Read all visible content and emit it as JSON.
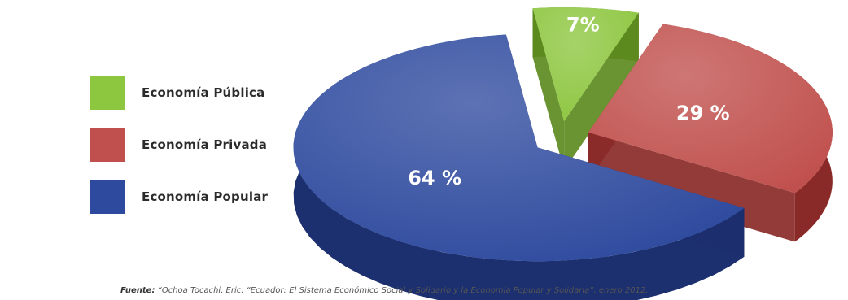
{
  "chart_data": {
    "type": "pie",
    "title": "",
    "slices": [
      {
        "label": "Economía Pública",
        "value": 7,
        "value_label": "7%",
        "color": "#8dc63f",
        "side_color": "#5d8a1f"
      },
      {
        "label": "Economía Privada",
        "value": 29,
        "value_label": "29 %",
        "color": "#c0504d",
        "side_color": "#8a2a28"
      },
      {
        "label": "Economía Popular",
        "value": 64,
        "value_label": "64 %",
        "color": "#2e4a9e",
        "side_color": "#1c2f6e"
      }
    ],
    "legend_position": "left",
    "style": "3d-exploded"
  },
  "source": {
    "label": "Fuente:",
    "text": "“Ochoa Tocachi, Eric, “Ecuador: El Sistema Económico Social y Solidario y la Economía Popular y Solidaria”, enero 2012."
  }
}
